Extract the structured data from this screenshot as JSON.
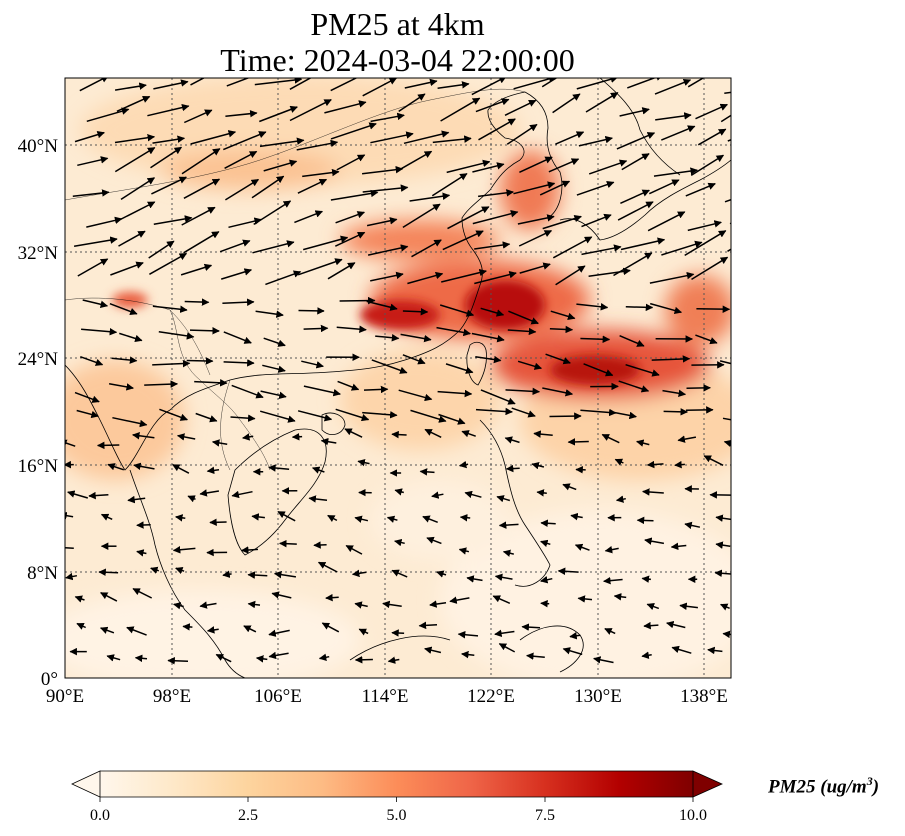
{
  "title_line1": "PM25 at 4km",
  "title_line2": "Time: 2024-03-04 22:00:00",
  "map": {
    "lon_range": [
      90,
      140
    ],
    "lat_range": [
      0,
      45
    ],
    "lon_ticks": [
      "90°E",
      "98°E",
      "106°E",
      "114°E",
      "122°E",
      "130°E",
      "138°E"
    ],
    "lat_ticks": [
      "0°",
      "8°N",
      "16°N",
      "24°N",
      "32°N",
      "40°N"
    ],
    "gridlines": true
  },
  "colorbar": {
    "label": "PM25 (ug/m",
    "label_sup": "3",
    "label_close": ")",
    "ticks": [
      "0.0",
      "2.5",
      "5.0",
      "7.5",
      "10.0"
    ],
    "range": [
      0,
      10
    ],
    "extend": "both",
    "colormap": [
      "#fff7ec",
      "#fee8c8",
      "#fdd49e",
      "#fdbb84",
      "#fc8d59",
      "#ef6548",
      "#d7301f",
      "#b30000",
      "#7f0000"
    ]
  }
}
